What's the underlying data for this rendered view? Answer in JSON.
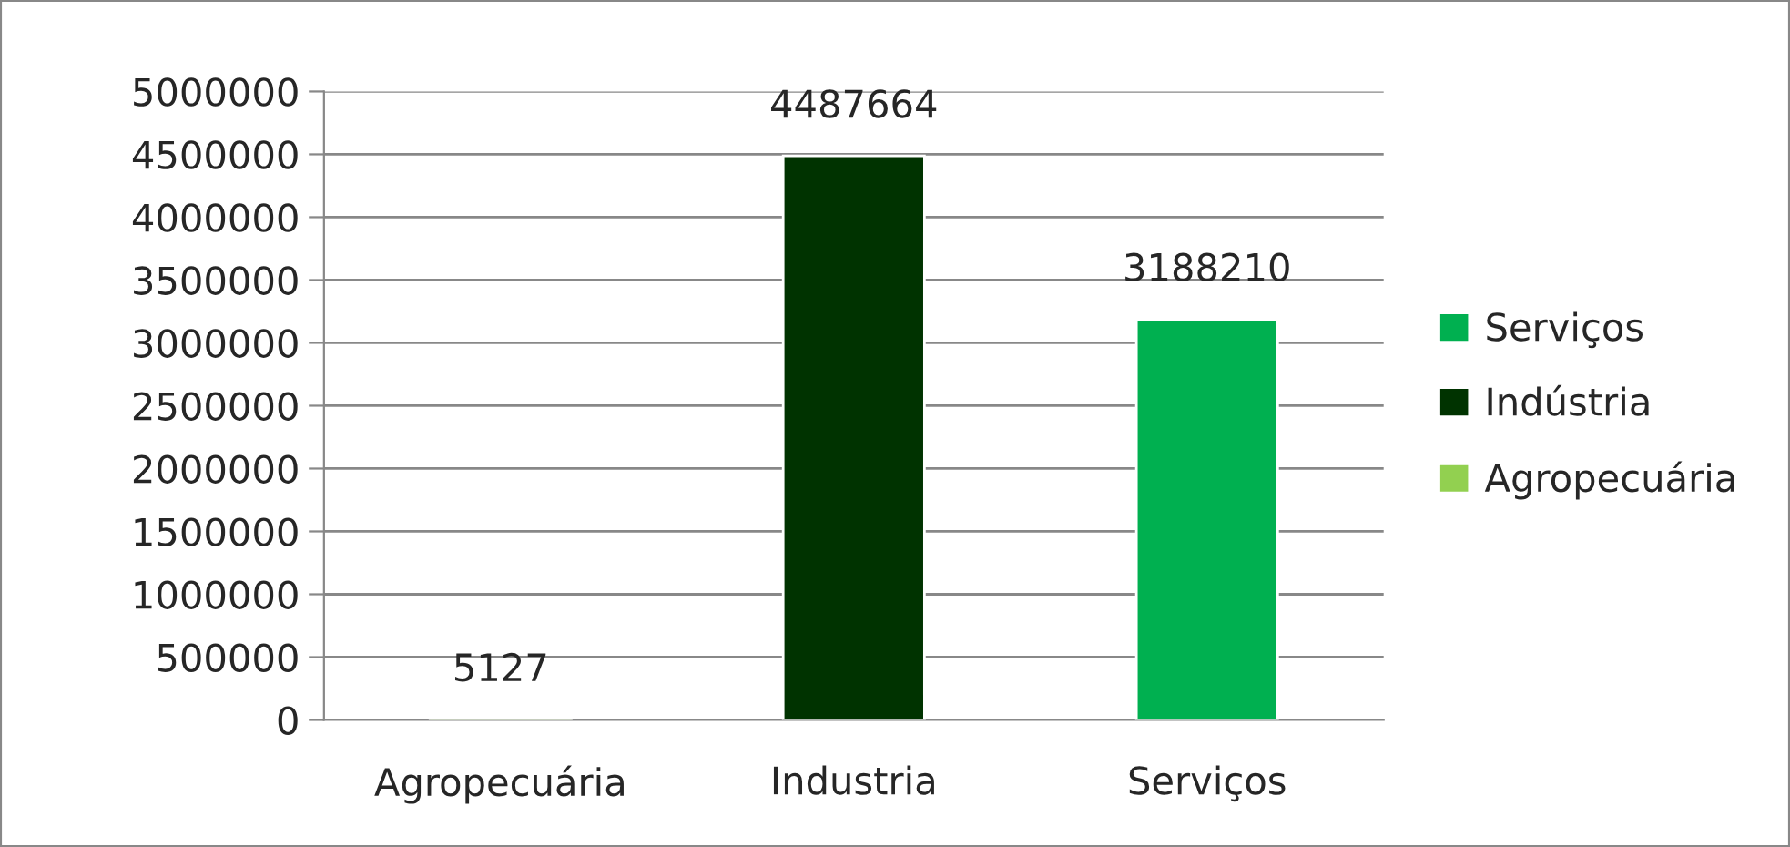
{
  "chart_data": {
    "type": "bar",
    "categories": [
      "Agropecuária",
      "Industria",
      "Serviços"
    ],
    "series": [
      {
        "name": "Agropecuária",
        "color": "#92d050",
        "values": [
          5127,
          null,
          null
        ]
      },
      {
        "name": "Indústria",
        "color": "#003300",
        "values": [
          null,
          4487664,
          null
        ]
      },
      {
        "name": "Serviços",
        "color": "#00b050",
        "values": [
          null,
          null,
          3188210
        ]
      }
    ],
    "stacked": true,
    "data_labels": true,
    "ylim": [
      0,
      5000000
    ],
    "yticks": [
      0,
      500000,
      1000000,
      1500000,
      2000000,
      2500000,
      3000000,
      3500000,
      4000000,
      4500000,
      5000000
    ],
    "grid": "y",
    "legend": "right"
  }
}
